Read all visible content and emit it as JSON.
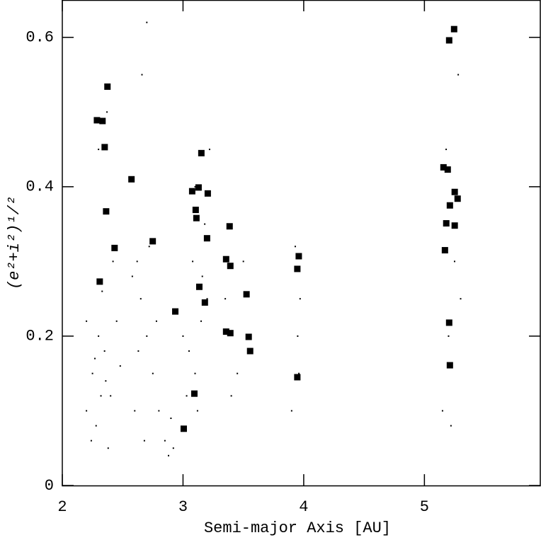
{
  "chart_data": {
    "type": "scatter",
    "xlabel": "Semi-major Axis [AU]",
    "ylabel": "(e²+i²)¹/²",
    "xlim": [
      2,
      5.96
    ],
    "ylim": [
      0,
      0.65
    ],
    "xticks": [
      2,
      3,
      4,
      5
    ],
    "yticks": [
      0,
      0.2,
      0.4,
      0.6
    ],
    "series": [
      {
        "color": "#000000",
        "marker": "dot",
        "x": [
          2.2,
          2.25,
          2.3,
          2.35,
          2.4,
          2.45,
          2.28,
          2.33,
          2.38,
          2.42,
          2.2,
          2.27,
          2.32,
          2.36,
          2.3,
          2.37,
          2.24,
          2.48,
          2.58,
          2.62,
          2.65,
          2.7,
          2.75,
          2.6,
          2.68,
          2.72,
          2.78,
          2.63,
          2.8,
          2.66,
          2.7,
          2.85,
          2.88,
          2.9,
          2.92,
          3.0,
          3.05,
          3.1,
          3.15,
          3.2,
          3.08,
          3.12,
          3.18,
          3.22,
          3.03,
          3.16,
          3.1,
          3.35,
          3.45,
          3.5,
          3.4,
          3.9,
          3.95,
          3.97,
          3.93,
          3.96,
          5.15,
          5.2,
          5.25,
          5.18,
          5.28,
          5.22,
          5.3
        ],
        "values": [
          0.1,
          0.15,
          0.2,
          0.18,
          0.12,
          0.22,
          0.08,
          0.26,
          0.05,
          0.3,
          0.22,
          0.17,
          0.12,
          0.14,
          0.45,
          0.5,
          0.06,
          0.16,
          0.28,
          0.3,
          0.25,
          0.2,
          0.15,
          0.1,
          0.06,
          0.32,
          0.22,
          0.18,
          0.1,
          0.55,
          0.62,
          0.06,
          0.04,
          0.09,
          0.05,
          0.2,
          0.18,
          0.15,
          0.22,
          0.25,
          0.3,
          0.1,
          0.35,
          0.45,
          0.12,
          0.28,
          0.4,
          0.25,
          0.15,
          0.3,
          0.12,
          0.1,
          0.2,
          0.25,
          0.32,
          0.15,
          0.1,
          0.2,
          0.3,
          0.45,
          0.55,
          0.08,
          0.25
        ]
      },
      {
        "color": "#000000",
        "marker": "square",
        "x": [
          5.246,
          5.205,
          2.287,
          2.333,
          2.374,
          2.351,
          2.363,
          2.433,
          2.31,
          2.573,
          2.749,
          2.936,
          3.006,
          3.076,
          3.129,
          3.152,
          3.105,
          3.111,
          3.199,
          3.205,
          3.181,
          3.135,
          3.094,
          3.386,
          3.357,
          3.392,
          3.357,
          3.392,
          3.526,
          3.544,
          3.556,
          3.959,
          3.947,
          3.947,
          5.158,
          5.193,
          5.211,
          5.251,
          5.275,
          5.181,
          5.251,
          5.17,
          5.205,
          5.211
        ],
        "values": [
          0.611,
          0.596,
          0.489,
          0.488,
          0.534,
          0.453,
          0.367,
          0.318,
          0.273,
          0.41,
          0.327,
          0.233,
          0.076,
          0.394,
          0.399,
          0.445,
          0.369,
          0.358,
          0.331,
          0.391,
          0.245,
          0.266,
          0.123,
          0.347,
          0.303,
          0.294,
          0.206,
          0.204,
          0.256,
          0.199,
          0.18,
          0.307,
          0.29,
          0.145,
          0.426,
          0.423,
          0.375,
          0.393,
          0.384,
          0.351,
          0.348,
          0.315,
          0.218,
          0.161
        ]
      }
    ]
  }
}
